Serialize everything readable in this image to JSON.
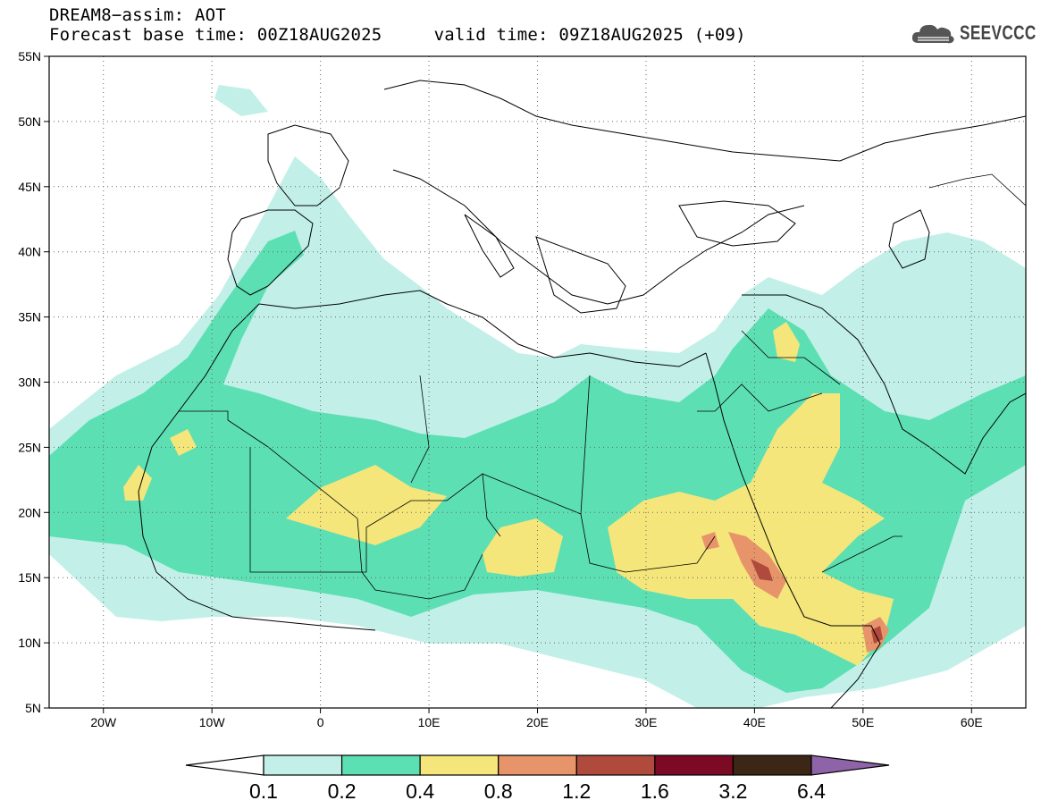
{
  "header": {
    "title": "DREAM8−assim: AOT",
    "base_time_label": "Forecast base time: 00Z18AUG2025",
    "valid_time_label": "valid time: 09Z18AUG2025 (+09)"
  },
  "logo": {
    "text": "SEEVCCC",
    "icon": "cloud-icon"
  },
  "map": {
    "projection": "lat-lon",
    "lon_range": [
      -25,
      65
    ],
    "lat_range": [
      5,
      55
    ],
    "lat_ticks": [
      {
        "value": 55,
        "label": "55N"
      },
      {
        "value": 50,
        "label": "50N"
      },
      {
        "value": 45,
        "label": "45N"
      },
      {
        "value": 40,
        "label": "40N"
      },
      {
        "value": 35,
        "label": "35N"
      },
      {
        "value": 30,
        "label": "30N"
      },
      {
        "value": 25,
        "label": "25N"
      },
      {
        "value": 20,
        "label": "20N"
      },
      {
        "value": 15,
        "label": "15N"
      },
      {
        "value": 10,
        "label": "10N"
      },
      {
        "value": 5,
        "label": "5N"
      }
    ],
    "lon_ticks": [
      {
        "value": -20,
        "label": "20W"
      },
      {
        "value": -10,
        "label": "10W"
      },
      {
        "value": 0,
        "label": "0"
      },
      {
        "value": 10,
        "label": "10E"
      },
      {
        "value": 20,
        "label": "20E"
      },
      {
        "value": 30,
        "label": "30E"
      },
      {
        "value": 40,
        "label": "40E"
      },
      {
        "value": 50,
        "label": "50E"
      },
      {
        "value": 60,
        "label": "60E"
      }
    ],
    "gridlines": "dotted"
  },
  "colorbar": {
    "levels": [
      "0.1",
      "0.2",
      "0.4",
      "0.8",
      "1.2",
      "1.6",
      "3.2",
      "6.4"
    ],
    "colors": [
      "#ffffff",
      "#c2f0e8",
      "#5ddfb4",
      "#f4e67a",
      "#e8946a",
      "#b04a3c",
      "#7c0a24",
      "#3c2616",
      "#8e63a8"
    ]
  }
}
